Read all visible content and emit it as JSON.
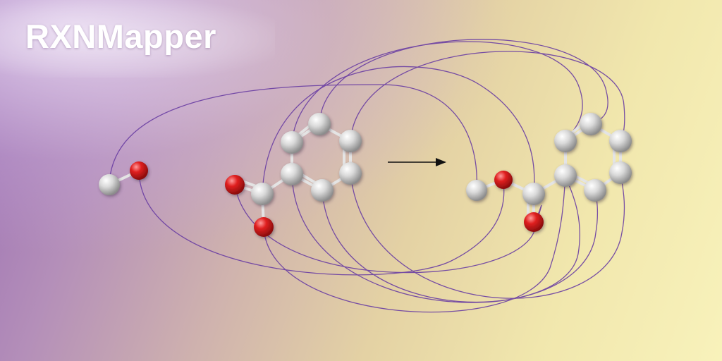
{
  "title": "RXNMapper",
  "colors": {
    "mapping_line": "#6a3ea3",
    "carbon": "#c8c8c8",
    "oxygen": "#d81e1e",
    "bond": "#e8e8e8",
    "arrow": "#111111"
  },
  "molecules": {
    "reactant_alcohol": [
      "carbon",
      "oxygen"
    ],
    "reactant_benzoic_acid": [
      "carbon-carboxyl",
      "oxygen",
      "oxygen",
      "benzene-ring-6-carbons"
    ],
    "product_ester": [
      "carbon",
      "oxygen",
      "carbon-carboxyl",
      "oxygen",
      "benzene-ring-6-carbons"
    ]
  },
  "reaction_arrow": "reactants-to-product"
}
